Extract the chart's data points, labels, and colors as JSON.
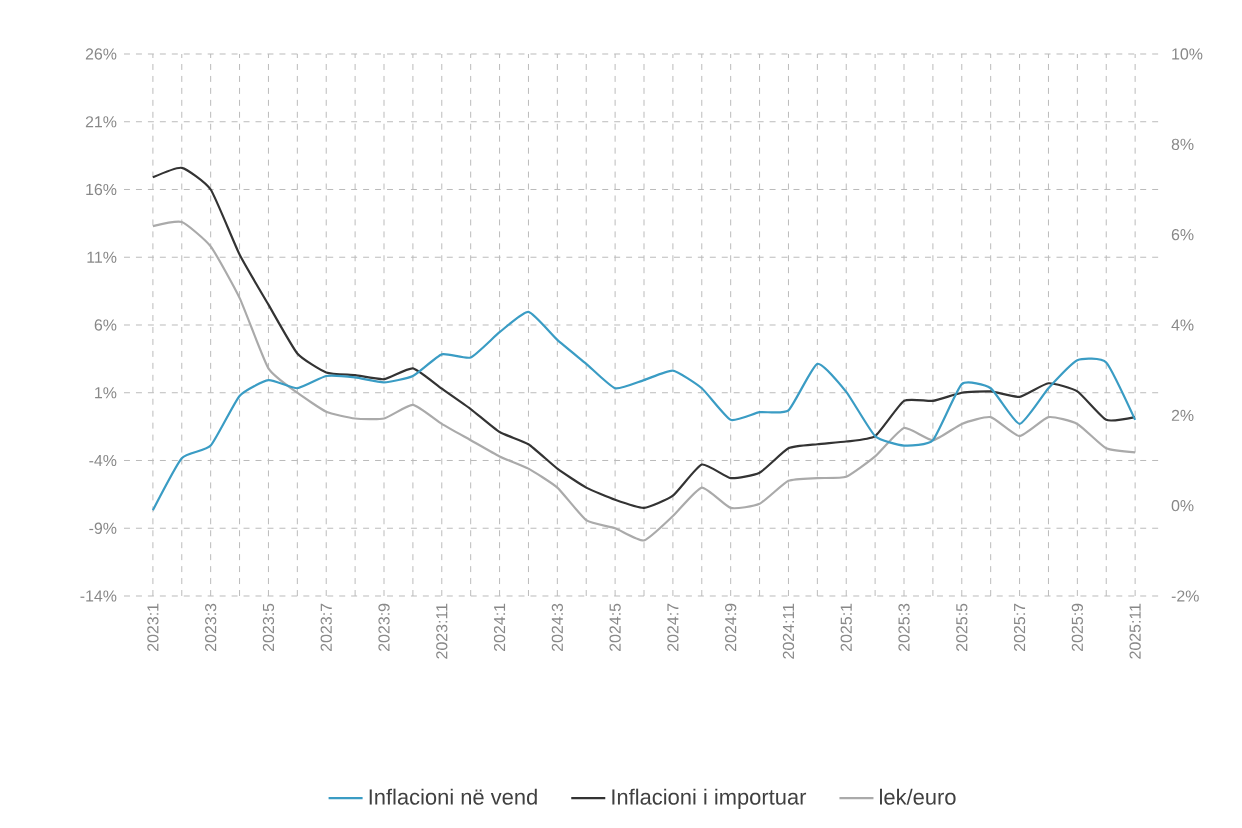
{
  "chart_data": {
    "type": "line",
    "categories": [
      "2023:1",
      null,
      "2023:3",
      null,
      "2023:5",
      null,
      "2023:7",
      null,
      "2023:9",
      null,
      "2023:11",
      null,
      "2024:1",
      null,
      "2024:3",
      null,
      "2024:5",
      null,
      "2024:7",
      null,
      "2024:9",
      null,
      "2024:11",
      null,
      "2025:1",
      null,
      "2025:3",
      null,
      "2025:5",
      null,
      "2025:7",
      null,
      "2025:9",
      null,
      "2025:11"
    ],
    "series": [
      {
        "name": "Inflacioni në vend",
        "color": "#3a9cc4",
        "axis": "y2",
        "values": [
          -0.1,
          1.05,
          1.33,
          2.43,
          2.78,
          2.6,
          2.87,
          2.84,
          2.73,
          2.87,
          3.35,
          3.28,
          3.84,
          4.29,
          3.67,
          3.14,
          2.6,
          2.78,
          2.99,
          2.6,
          1.9,
          2.07,
          2.11,
          3.14,
          2.52,
          1.54,
          1.33,
          1.45,
          2.69,
          2.6,
          1.81,
          2.6,
          3.22,
          3.17,
          1.9
        ]
      },
      {
        "name": "Inflacioni i importuar",
        "color": "#333333",
        "values": [
          16.9,
          17.6,
          16.0,
          11.2,
          7.5,
          3.9,
          2.5,
          2.3,
          2.0,
          2.8,
          1.3,
          -0.2,
          -1.9,
          -2.8,
          -4.6,
          -6.0,
          -6.9,
          -7.5,
          -6.6,
          -4.3,
          -5.3,
          -4.9,
          -3.1,
          -2.8,
          -2.6,
          -2.2,
          0.4,
          0.4,
          1.0,
          1.1,
          0.7,
          1.7,
          1.1,
          -1.0,
          -0.8
        ]
      },
      {
        "name": "lek/euro",
        "color": "#aaaaaa",
        "values": [
          13.3,
          13.6,
          11.8,
          8.0,
          2.8,
          1.0,
          -0.4,
          -0.9,
          -0.9,
          0.1,
          -1.3,
          -2.5,
          -3.7,
          -4.6,
          -6.0,
          -8.4,
          -9.0,
          -9.9,
          -8.1,
          -6.0,
          -7.5,
          -7.2,
          -5.5,
          -5.3,
          -5.2,
          -3.7,
          -1.6,
          -2.5,
          -1.3,
          -0.8,
          -2.2,
          -0.8,
          -1.3,
          -3.1,
          -3.4
        ]
      }
    ],
    "ylim": [
      -14,
      26
    ],
    "yticks": [
      {
        "value": -14,
        "label": "-14%"
      },
      {
        "value": -9,
        "label": "-9%"
      },
      {
        "value": -4,
        "label": "-4%"
      },
      {
        "value": 1,
        "label": "1%"
      },
      {
        "value": 6,
        "label": "6%"
      },
      {
        "value": 11,
        "label": "11%"
      },
      {
        "value": 16,
        "label": "16%"
      },
      {
        "value": 21,
        "label": "21%"
      },
      {
        "value": 26,
        "label": "26%"
      }
    ],
    "y2lim": [
      -2,
      10
    ],
    "y2ticks": [
      {
        "value": -2,
        "label": "-2%"
      },
      {
        "value": 0,
        "label": "0%"
      },
      {
        "value": 2,
        "label": "2%"
      },
      {
        "value": 4,
        "label": "4%"
      },
      {
        "value": 6,
        "label": "6%"
      },
      {
        "value": 8,
        "label": "8%"
      },
      {
        "value": 10,
        "label": "10%"
      }
    ],
    "grid": true,
    "legend": "bottom"
  }
}
